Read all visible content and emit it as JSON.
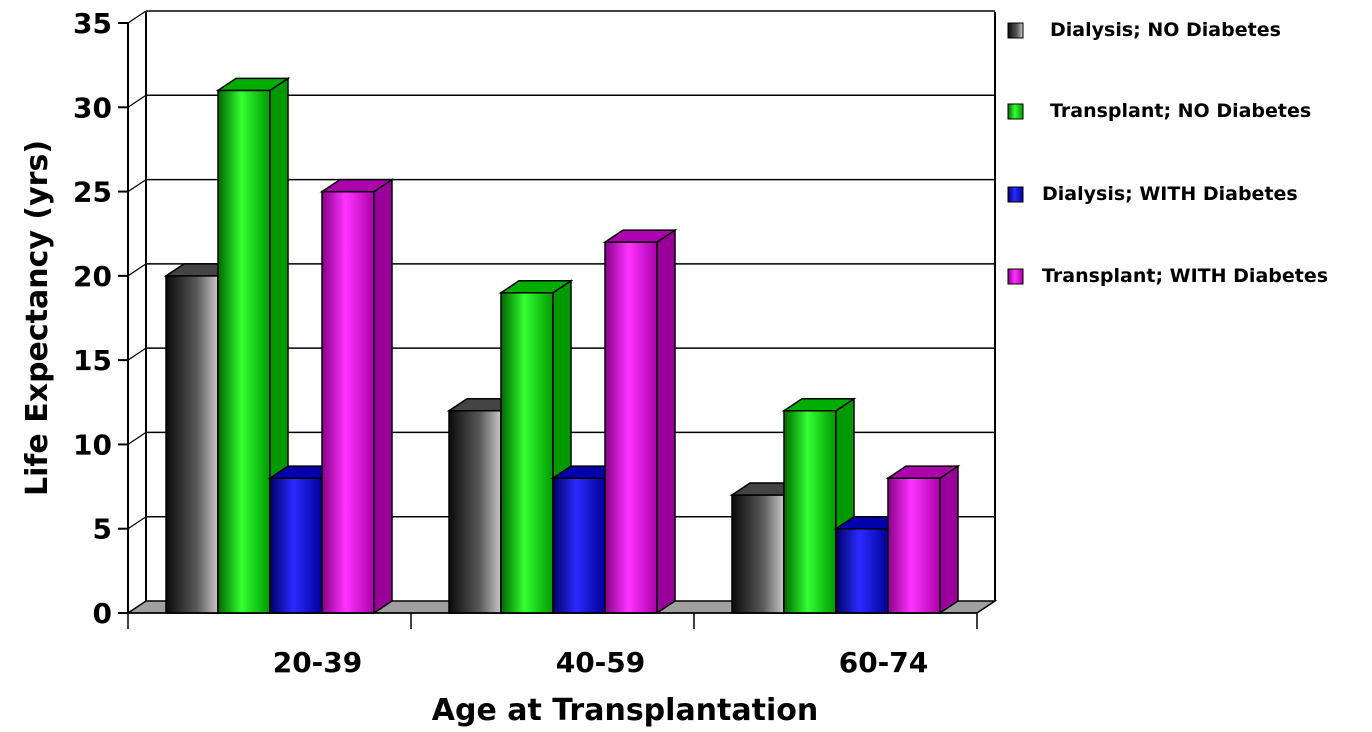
{
  "chart_data": {
    "type": "bar",
    "title": "",
    "xlabel": "Age at Transplantation",
    "ylabel": "Life Expectancy (yrs)",
    "categories": [
      "20-39",
      "40-59",
      "60-74"
    ],
    "yticks": [
      "0",
      "5",
      "10",
      "15",
      "20",
      "25",
      "30",
      "35"
    ],
    "ylim": [
      0,
      35
    ],
    "grid": true,
    "legend_position": "right",
    "series": [
      {
        "name": "Dialysis; NO Diabetes",
        "values": [
          20,
          12,
          7
        ],
        "color": "#505050"
      },
      {
        "name": "Transplant; NO Diabetes",
        "values": [
          31,
          19,
          12
        ],
        "color": "#00cc00"
      },
      {
        "name": "Dialysis; WITH Diabetes",
        "values": [
          8,
          8,
          5
        ],
        "color": "#0000cc"
      },
      {
        "name": "Transplant; WITH Diabetes",
        "values": [
          25,
          22,
          8
        ],
        "color": "#cc00cc"
      }
    ]
  }
}
